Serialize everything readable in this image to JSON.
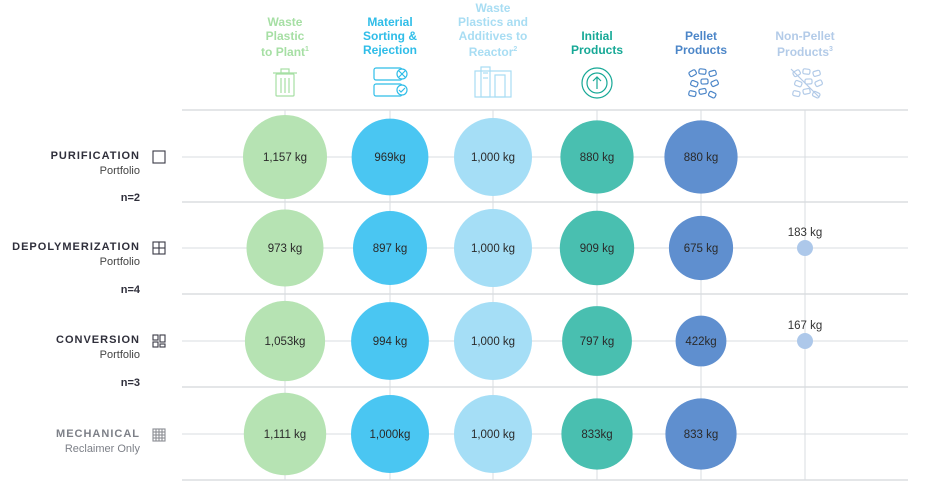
{
  "chart_data": {
    "type": "bubble-matrix",
    "columns": [
      {
        "label_lines": [
          "Waste",
          "Plastic",
          "to Plant"
        ],
        "sup": "1",
        "color": "#a6dfa4",
        "icon": "trash-bin-icon"
      },
      {
        "label_lines": [
          "Material",
          "Sorting &",
          "Rejection"
        ],
        "sup": "",
        "color": "#2fbde8",
        "icon": "sorting-bins-icon"
      },
      {
        "label_lines": [
          "Waste",
          "Plastics and",
          "Additives to",
          "Reactor"
        ],
        "sup": "2",
        "color": "#a8ddf3",
        "icon": "reactor-icon"
      },
      {
        "label_lines": [
          "Initial",
          "Products"
        ],
        "sup": "",
        "color": "#16a896",
        "icon": "arrow-up-circle-icon"
      },
      {
        "label_lines": [
          "Pellet",
          "Products"
        ],
        "sup": "",
        "color": "#4c86c8",
        "icon": "pellets-icon"
      },
      {
        "label_lines": [
          "Non-Pellet",
          "Products"
        ],
        "sup": "3",
        "color": "#b3cbe8",
        "icon": "non-pellets-icon"
      }
    ],
    "bubble_colors": [
      "#b6e3b3",
      "#4ac6f2",
      "#a5def6",
      "#49bfb0",
      "#5f8fcf",
      "#adc8ea"
    ],
    "rows": [
      {
        "name": "PURIFICATION",
        "sub": "Portfolio",
        "n": "n=2",
        "icon": "square-outline-icon",
        "muted": false,
        "values": [
          1157,
          969,
          1000,
          880,
          880,
          null
        ],
        "labels": [
          "1,157 kg",
          "969kg",
          "1,000 kg",
          "880 kg",
          "880 kg",
          ""
        ]
      },
      {
        "name": "DEPOLYMERIZATION",
        "sub": "Portfolio",
        "n": "n=4",
        "icon": "grid-four-icon",
        "muted": false,
        "values": [
          973,
          897,
          1000,
          909,
          675,
          183
        ],
        "labels": [
          "973 kg",
          "897 kg",
          "1,000 kg",
          "909 kg",
          "675 kg",
          "183 kg"
        ]
      },
      {
        "name": "CONVERSION",
        "sub": "Portfolio",
        "n": "n=3",
        "icon": "conversion-blocks-icon",
        "muted": false,
        "values": [
          1053,
          994,
          1000,
          797,
          422,
          167
        ],
        "labels": [
          "1,053kg",
          "994 kg",
          "1,000 kg",
          "797 kg",
          "422kg",
          "167 kg"
        ]
      },
      {
        "name": "MECHANICAL",
        "sub": "Reclaimer Only",
        "n": "",
        "icon": "dense-grid-icon",
        "muted": true,
        "values": [
          1111,
          1000,
          1000,
          833,
          833,
          null
        ],
        "labels": [
          "1,111 kg",
          "1,000kg",
          "1,000 kg",
          "833kg",
          "833 kg",
          ""
        ]
      }
    ],
    "unit": "kg"
  }
}
